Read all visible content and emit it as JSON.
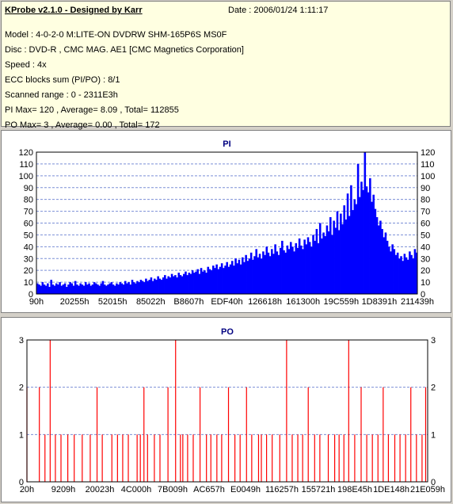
{
  "header": {
    "app_title": "KProbe v2.1.0 - Designed by Karr",
    "date": "Date : 2006/01/24 1:11:17",
    "lines": [
      "Model : 4-0-2-0 M:LITE-ON DVDRW SHM-165P6S MS0F",
      "Disc : DVD-R , CMC MAG. AE1 [CMC Magnetics Corporation]",
      "Speed : 4x",
      "ECC blocks sum (PI/PO) : 8/1",
      "Scanned range : 0 - 2311E3h",
      "PI Max= 120 , Average= 8.09 , Total= 112855",
      "PO Max= 3 , Average= 0.00 , Total= 172"
    ]
  },
  "colors": {
    "pi_fill": "#0000ff",
    "po_line": "#ff0000",
    "grid": "#7b8fd6",
    "axis": "#000000"
  },
  "chart_data": [
    {
      "type": "bar",
      "title": "PI",
      "ylim": [
        0,
        120
      ],
      "yticks": [
        0,
        10,
        20,
        30,
        40,
        50,
        60,
        70,
        80,
        90,
        100,
        110,
        120
      ],
      "x_tick_labels": [
        "90h",
        "20255h",
        "52015h",
        "85022h",
        "B8607h",
        "EDF40h",
        "126618h",
        "161300h",
        "19C559h",
        "1D8391h",
        "211439h"
      ],
      "grid": true,
      "series": [
        {
          "values": [
            9,
            8,
            7,
            10,
            8,
            7,
            9,
            6,
            12,
            8,
            7,
            9,
            8,
            10,
            7,
            8,
            9,
            6,
            8,
            10,
            9,
            7,
            11,
            8,
            7,
            9,
            8,
            7,
            10,
            8,
            9,
            7,
            8,
            10,
            9,
            8,
            7,
            9,
            11,
            8,
            7,
            8,
            9,
            10,
            8,
            7,
            9,
            8,
            10,
            9,
            8,
            11,
            9,
            10,
            8,
            12,
            10,
            9,
            11,
            10,
            12,
            11,
            10,
            13,
            11,
            12,
            14,
            11,
            13,
            12,
            15,
            13,
            12,
            14,
            16,
            13,
            15,
            14,
            17,
            15,
            16,
            14,
            18,
            16,
            15,
            17,
            19,
            16,
            18,
            17,
            20,
            18,
            19,
            21,
            17,
            22,
            19,
            20,
            18,
            23,
            21,
            20,
            24,
            22,
            25,
            21,
            23,
            26,
            22,
            24,
            27,
            23,
            25,
            28,
            24,
            30,
            26,
            29,
            25,
            31,
            27,
            33,
            28,
            30,
            35,
            29,
            32,
            38,
            31,
            34,
            30,
            36,
            33,
            40,
            35,
            32,
            38,
            34,
            42,
            36,
            33,
            39,
            45,
            37,
            35,
            41,
            38,
            44,
            40,
            36,
            43,
            39,
            47,
            41,
            38,
            46,
            42,
            48,
            44,
            40,
            50,
            45,
            55,
            43,
            60,
            47,
            52,
            49,
            58,
            53,
            65,
            50,
            62,
            56,
            70,
            54,
            68,
            59,
            75,
            63,
            85,
            66,
            92,
            71,
            80,
            76,
            110,
            82,
            95,
            88,
            120,
            91,
            86,
            98,
            78,
            84,
            72,
            65,
            58,
            62,
            55,
            48,
            52,
            45,
            40,
            36,
            42,
            38,
            33,
            35,
            30,
            32,
            28,
            34,
            31,
            29,
            36,
            33,
            30,
            38,
            35
          ]
        }
      ]
    },
    {
      "type": "bar",
      "title": "PO",
      "ylim": [
        0,
        3
      ],
      "yticks": [
        0,
        1,
        2,
        3
      ],
      "x_tick_labels": [
        "20h",
        "9209h",
        "20023h",
        "4C000h",
        "7B009h",
        "AC657h",
        "E0049h",
        "116257h",
        "155721h",
        "198E45h",
        "1DE148h",
        "21E059h"
      ],
      "grid": true,
      "series": [
        {
          "x": [
            0.0,
            0.031,
            0.045,
            0.058,
            0.071,
            0.085,
            0.102,
            0.118,
            0.138,
            0.158,
            0.175,
            0.188,
            0.212,
            0.226,
            0.239,
            0.253,
            0.275,
            0.283,
            0.292,
            0.301,
            0.318,
            0.332,
            0.352,
            0.371,
            0.383,
            0.389,
            0.401,
            0.415,
            0.432,
            0.448,
            0.459,
            0.474,
            0.486,
            0.503,
            0.519,
            0.532,
            0.548,
            0.561,
            0.578,
            0.585,
            0.598,
            0.612,
            0.631,
            0.648,
            0.662,
            0.676,
            0.688,
            0.702,
            0.718,
            0.731,
            0.752,
            0.768,
            0.779,
            0.791,
            0.803,
            0.818,
            0.834,
            0.848,
            0.862,
            0.876,
            0.889,
            0.902,
            0.918,
            0.931,
            0.945,
            0.958,
            0.972,
            0.986,
            0.995
          ],
          "values": [
            2,
            2,
            1,
            3,
            1,
            1,
            1,
            1,
            1,
            1,
            2,
            1,
            1,
            1,
            1,
            1,
            1,
            1,
            2,
            1,
            1,
            1,
            2,
            3,
            1,
            1,
            1,
            1,
            2,
            1,
            1,
            1,
            1,
            2,
            1,
            1,
            2,
            1,
            1,
            1,
            1,
            1,
            1,
            3,
            1,
            1,
            1,
            2,
            1,
            1,
            1,
            1,
            1,
            1,
            3,
            1,
            2,
            1,
            1,
            1,
            2,
            1,
            1,
            1,
            1,
            2,
            1,
            1,
            2
          ]
        }
      ]
    }
  ]
}
